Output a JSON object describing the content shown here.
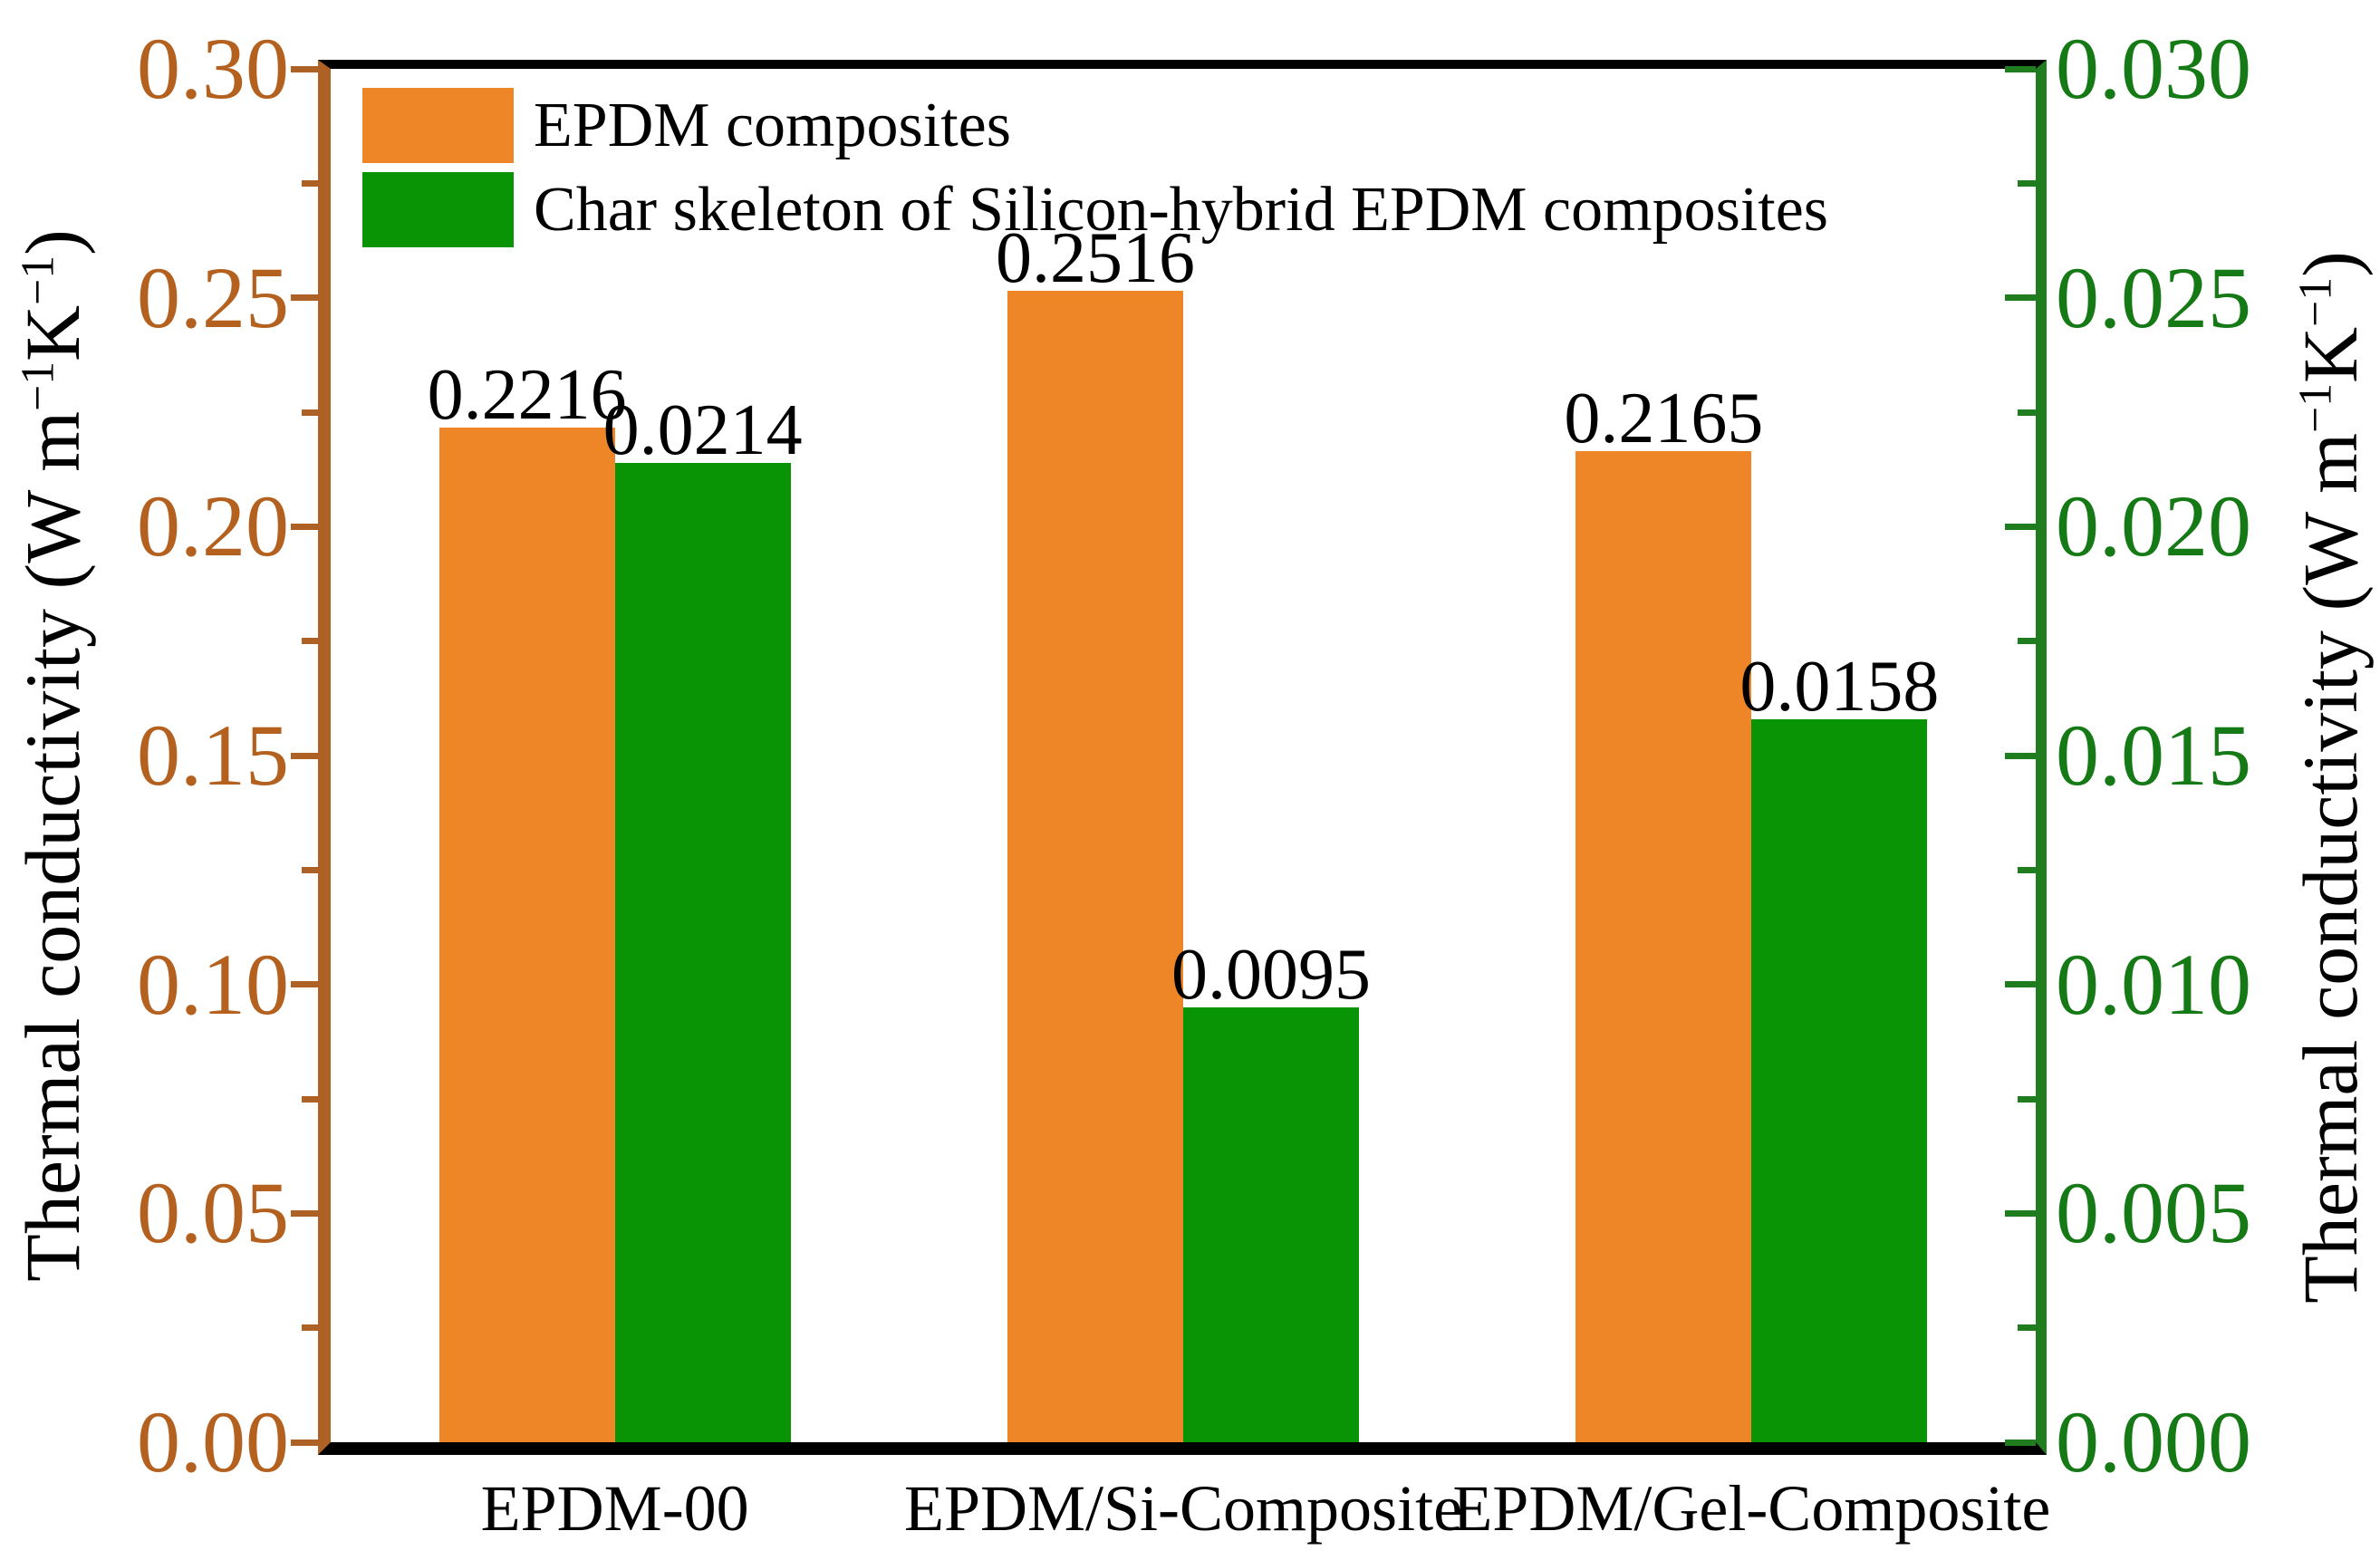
{
  "colors": {
    "bar_orange": "#ee8627",
    "bar_green": "#089405",
    "left_axis": "#ad6124",
    "left_tick_text": "#b4601e",
    "right_axis": "#1f7d1f",
    "right_tick_text": "#157a15",
    "frame_black": "#000000"
  },
  "chart_data": {
    "type": "bar",
    "title": "",
    "categories": [
      "EPDM-00",
      "EPDM/Si-Composite",
      "EPDM/Gel-Composite"
    ],
    "series": [
      {
        "name": "EPDM composites",
        "axis": "left",
        "color_key": "bar_orange",
        "values": [
          0.2216,
          0.2516,
          0.2165
        ],
        "value_labels": [
          "0.2216",
          "0.2516",
          "0.2165"
        ]
      },
      {
        "name": "Char skeleton of Silicon-hybrid EPDM composites",
        "axis": "right",
        "color_key": "bar_green",
        "values": [
          0.0214,
          0.0095,
          0.0158
        ],
        "value_labels": [
          "0.0214",
          "0.0095",
          "0.0158"
        ]
      }
    ],
    "left_axis": {
      "title_parts": [
        {
          "text": "Thermal conductivity (W m"
        },
        {
          "text": "−1",
          "sup": true
        },
        {
          "text": "K"
        },
        {
          "text": "−1",
          "sup": true
        },
        {
          "text": ")"
        }
      ],
      "min": 0.0,
      "max": 0.3,
      "tick_labels": [
        "0.30",
        "0.25",
        "0.20",
        "0.15",
        "0.10",
        "0.05",
        "0.00"
      ],
      "tick_values": [
        0.3,
        0.25,
        0.2,
        0.15,
        0.1,
        0.05,
        0.0
      ],
      "minor_ticks": [
        0.275,
        0.225,
        0.175,
        0.125,
        0.075,
        0.025
      ]
    },
    "right_axis": {
      "title_parts": [
        {
          "text": "Thermal conductivity (W m"
        },
        {
          "text": "−1",
          "sup": true
        },
        {
          "text": "K"
        },
        {
          "text": "−1",
          "sup": true
        },
        {
          "text": ")"
        }
      ],
      "min": 0.0,
      "max": 0.03,
      "tick_labels": [
        "0.030",
        "0.025",
        "0.020",
        "0.015",
        "0.010",
        "0.005",
        "0.000"
      ],
      "tick_values": [
        0.03,
        0.025,
        0.02,
        0.015,
        0.01,
        0.005,
        0.0
      ],
      "minor_ticks": [
        0.0275,
        0.0225,
        0.0175,
        0.0125,
        0.0075,
        0.0025
      ]
    },
    "legend": {
      "position": "upper-left",
      "entries": [
        "EPDM composites",
        "Char skeleton of Silicon-hybrid EPDM composites"
      ]
    },
    "grid": false
  }
}
